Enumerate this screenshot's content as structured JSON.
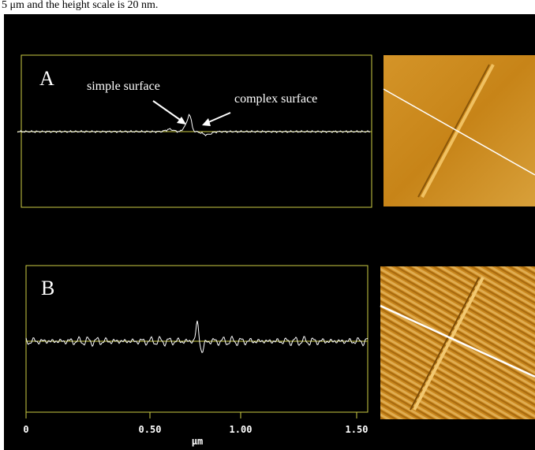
{
  "caption": "5 μm and the height scale is 20 nm.",
  "panels": [
    {
      "label": "A",
      "annotations": [
        "simple surface",
        "complex surface"
      ]
    },
    {
      "label": "B"
    }
  ],
  "axis": {
    "ticks": [
      "0",
      "0.50",
      "1.00",
      "1.50"
    ],
    "unit": "μm"
  }
}
